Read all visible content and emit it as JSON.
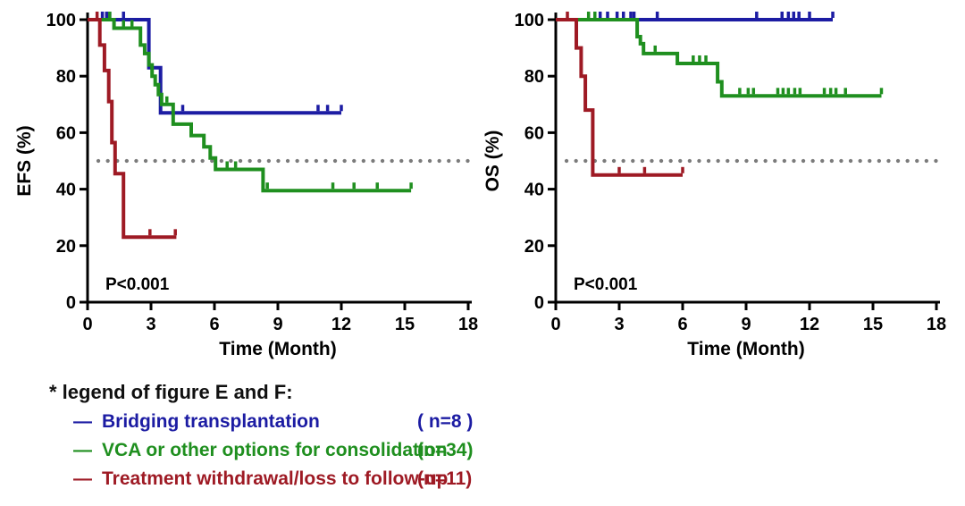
{
  "figure": {
    "legend": {
      "header": "* legend of figure E and F:",
      "dash": "—",
      "items": [
        {
          "label": "Bridging transplantation",
          "n": "( n=8 )",
          "color": "#1c1ca3"
        },
        {
          "label": "VCA or other options for consolidation",
          "n": "(n=34)",
          "color": "#1f8f1f"
        },
        {
          "label": "Treatment withdrawal/loss to follow-up",
          "n": "(n=11)",
          "color": "#9e1a24"
        }
      ]
    },
    "colors": {
      "bridging": "#1c1ca3",
      "vca": "#1f8f1f",
      "withdrawal": "#9e1a24",
      "reference_dots": "#7b7b7b",
      "axis": "#000000"
    }
  },
  "chart_data": [
    {
      "type": "line",
      "subtype": "kaplan-meier-step",
      "panel": "E",
      "ylabel": "EFS (%)",
      "xlabel": "Time (Month)",
      "xlim": [
        0,
        18
      ],
      "ylim": [
        0,
        100
      ],
      "xticks": [
        0,
        3,
        6,
        9,
        12,
        15,
        18
      ],
      "yticks": [
        0,
        20,
        40,
        60,
        80,
        100
      ],
      "grid": false,
      "legend_position": "below-figure",
      "annotation": "P<0.001",
      "reference_line_y": 50,
      "series": [
        {
          "name": "Bridging transplantation (n=8)",
          "color": "#1c1ca3",
          "steps": [
            [
              0,
              100
            ],
            [
              2.9,
              83
            ],
            [
              3.45,
              67
            ]
          ],
          "end": 12.0,
          "censors": [
            [
              0.7,
              100
            ],
            [
              0.9,
              100
            ],
            [
              1.05,
              100
            ],
            [
              1.7,
              100
            ],
            [
              4.5,
              67
            ],
            [
              10.9,
              67
            ],
            [
              11.35,
              67
            ],
            [
              12.0,
              67
            ]
          ]
        },
        {
          "name": "VCA or other options for consolidation (n=34)",
          "color": "#1f8f1f",
          "steps": [
            [
              0,
              100
            ],
            [
              1.25,
              97
            ],
            [
              2.5,
              91
            ],
            [
              2.7,
              88
            ],
            [
              2.9,
              84
            ],
            [
              3.05,
              80
            ],
            [
              3.2,
              77
            ],
            [
              3.35,
              73.5
            ],
            [
              3.5,
              70
            ],
            [
              4.05,
              63
            ],
            [
              4.9,
              59
            ],
            [
              5.5,
              55
            ],
            [
              5.8,
              51
            ],
            [
              6.05,
              47
            ],
            [
              8.3,
              39.5
            ]
          ],
          "end": 15.3,
          "censors": [
            [
              1.05,
              100
            ],
            [
              1.7,
              97
            ],
            [
              2.1,
              97
            ],
            [
              3.75,
              70
            ],
            [
              6.6,
              47
            ],
            [
              7.0,
              47
            ],
            [
              8.5,
              39.5
            ],
            [
              11.6,
              39.5
            ],
            [
              12.6,
              39.5
            ],
            [
              13.7,
              39.5
            ],
            [
              15.3,
              39.5
            ]
          ]
        },
        {
          "name": "Treatment withdrawal/loss to follow-up (n=11)",
          "color": "#9e1a24",
          "steps": [
            [
              0,
              100
            ],
            [
              0.58,
              91
            ],
            [
              0.8,
              82
            ],
            [
              1.0,
              71
            ],
            [
              1.15,
              56.5
            ],
            [
              1.3,
              45.5
            ],
            [
              1.7,
              23
            ]
          ],
          "end": 4.2,
          "censors": [
            [
              0.45,
              100
            ],
            [
              2.95,
              23
            ],
            [
              4.15,
              23
            ]
          ]
        }
      ]
    },
    {
      "type": "line",
      "subtype": "kaplan-meier-step",
      "panel": "F",
      "ylabel": "OS (%)",
      "xlabel": "Time (Month)",
      "xlim": [
        0,
        18
      ],
      "ylim": [
        0,
        100
      ],
      "xticks": [
        0,
        3,
        6,
        9,
        12,
        15,
        18
      ],
      "yticks": [
        0,
        20,
        40,
        60,
        80,
        100
      ],
      "grid": false,
      "legend_position": "below-figure",
      "annotation": "P<0.001",
      "reference_line_y": 50,
      "series": [
        {
          "name": "Bridging transplantation (n=8)",
          "color": "#1c1ca3",
          "steps": [
            [
              0,
              100
            ]
          ],
          "end": 13.1,
          "censors": [
            [
              2.1,
              100
            ],
            [
              2.45,
              100
            ],
            [
              2.9,
              100
            ],
            [
              3.2,
              100
            ],
            [
              3.55,
              100
            ],
            [
              3.7,
              100
            ],
            [
              4.8,
              100
            ],
            [
              9.5,
              100
            ],
            [
              10.7,
              100
            ],
            [
              11.0,
              100
            ],
            [
              11.25,
              100
            ],
            [
              11.5,
              100
            ],
            [
              12.0,
              100
            ],
            [
              13.1,
              100
            ]
          ]
        },
        {
          "name": "VCA or other options for consolidation (n=34)",
          "color": "#1f8f1f",
          "steps": [
            [
              0,
              100
            ],
            [
              3.85,
              94
            ],
            [
              4.0,
              91.5
            ],
            [
              4.15,
              88
            ],
            [
              5.75,
              84.5
            ],
            [
              7.65,
              78
            ],
            [
              7.85,
              73
            ]
          ],
          "end": 15.4,
          "censors": [
            [
              1.55,
              100
            ],
            [
              1.85,
              100
            ],
            [
              4.7,
              88
            ],
            [
              6.5,
              84.5
            ],
            [
              6.8,
              84.5
            ],
            [
              7.1,
              84.5
            ],
            [
              8.7,
              73
            ],
            [
              9.1,
              73
            ],
            [
              9.35,
              73
            ],
            [
              10.5,
              73
            ],
            [
              10.75,
              73
            ],
            [
              11.0,
              73
            ],
            [
              11.3,
              73
            ],
            [
              11.55,
              73
            ],
            [
              12.7,
              73
            ],
            [
              13.0,
              73
            ],
            [
              13.25,
              73
            ],
            [
              13.7,
              73
            ],
            [
              15.4,
              73
            ]
          ]
        },
        {
          "name": "Treatment withdrawal/loss to follow-up (n=11)",
          "color": "#9e1a24",
          "steps": [
            [
              0,
              100
            ],
            [
              0.97,
              90
            ],
            [
              1.2,
              80
            ],
            [
              1.4,
              68
            ],
            [
              1.75,
              45
            ]
          ],
          "end": 6.0,
          "censors": [
            [
              0.55,
              100
            ],
            [
              3.0,
              45
            ],
            [
              4.2,
              45
            ],
            [
              6.0,
              45
            ]
          ]
        }
      ]
    }
  ]
}
